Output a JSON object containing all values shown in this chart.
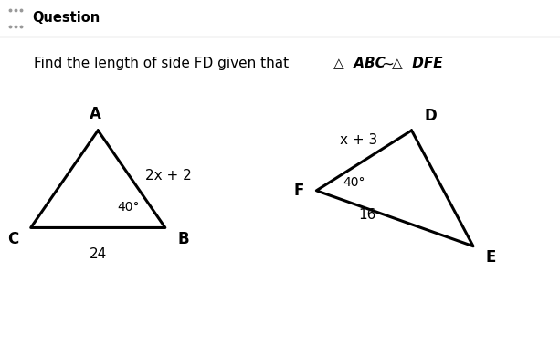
{
  "title": "Question",
  "bg_color": "#ffffff",
  "header_bg": "#f2f2f2",
  "header_text_color": "#000000",
  "border_color": "#cccccc",
  "line_color": "#000000",
  "line_width": 2.2,
  "font_size_labels": 12,
  "font_size_side": 11,
  "font_size_angle": 10,
  "font_size_question": 11,
  "font_size_header": 10.5,
  "triangle1": {
    "A": [
      0.175,
      0.695
    ],
    "B": [
      0.295,
      0.38
    ],
    "C": [
      0.055,
      0.38
    ],
    "label_A": "A",
    "label_B": "B",
    "label_C": "C",
    "side_AB_label": "2x + 2",
    "side_CB_label": "24",
    "angle_B_label": "40°"
  },
  "triangle2": {
    "D": [
      0.735,
      0.695
    ],
    "F": [
      0.565,
      0.5
    ],
    "E": [
      0.845,
      0.32
    ],
    "label_D": "D",
    "label_F": "F",
    "label_E": "E",
    "side_FD_label": "x + 3",
    "side_FE_label": "16",
    "angle_F_label": "40°"
  },
  "question_plain": "Find the length of side FD given that ",
  "tri_symbol": "△",
  "abc_text": " ABC ",
  "sim_symbol": "~",
  "dfe_text": " DFE",
  "period": "."
}
